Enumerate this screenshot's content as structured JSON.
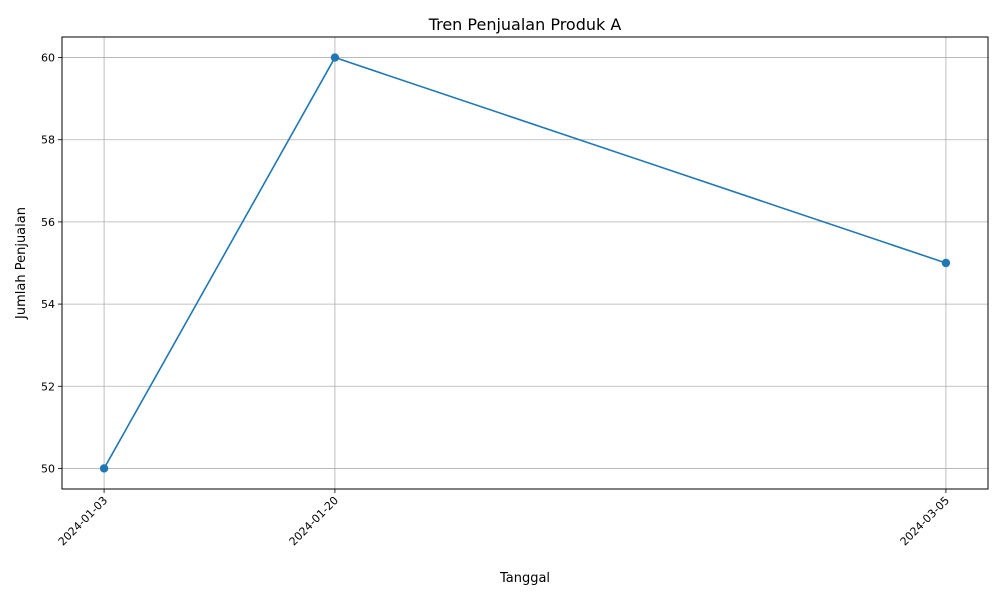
{
  "chart_data": {
    "type": "line",
    "title": "Tren Penjualan Produk A",
    "xlabel": "Tanggal",
    "ylabel": "Jumlah Penjualan",
    "x": [
      "2024-01-03",
      "2024-01-20",
      "2024-03-05"
    ],
    "series": [
      {
        "values": [
          50,
          60,
          55
        ]
      }
    ],
    "ylim": [
      49.5,
      60.5
    ],
    "yticks": [
      50,
      52,
      54,
      56,
      58,
      60
    ],
    "grid": true,
    "legend": "none",
    "marker": "circle",
    "line_color": "#1f77b4"
  }
}
